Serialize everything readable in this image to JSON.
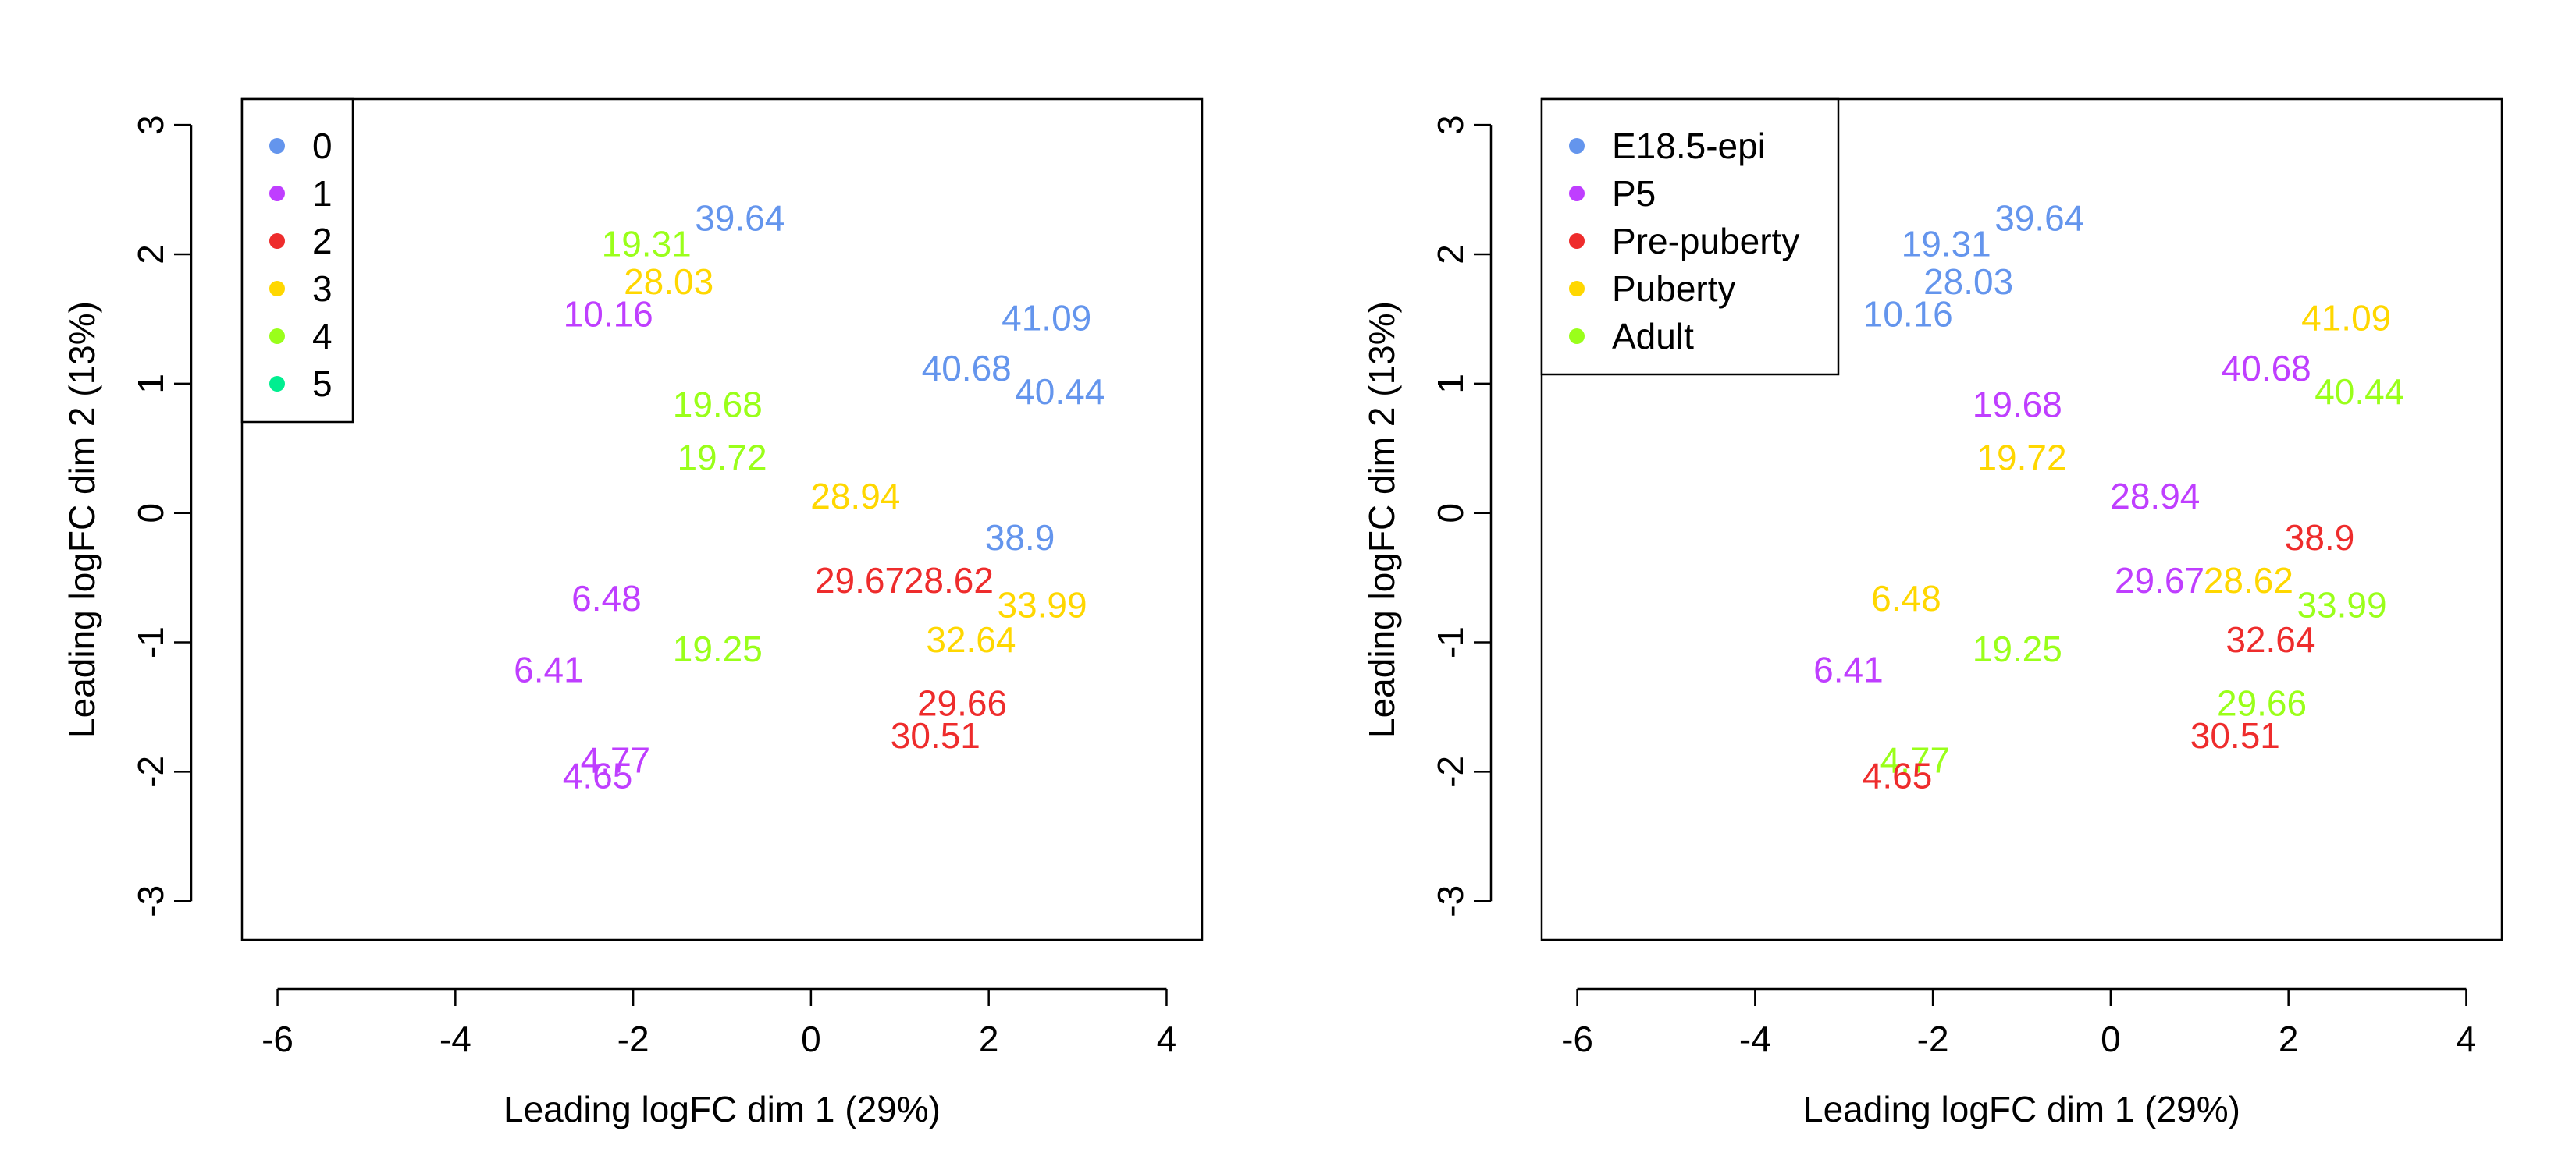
{
  "chart_data": [
    {
      "type": "scatter",
      "xlabel": "Leading logFC dim 1 (29%)",
      "ylabel": "Leading logFC dim 2 (13%)",
      "xlim": [
        -6.4,
        4.4
      ],
      "ylim": [
        -3.3,
        3.2
      ],
      "xticks": [
        -6,
        -4,
        -2,
        0,
        2,
        4
      ],
      "yticks": [
        -3,
        -2,
        -1,
        0,
        1,
        2,
        3
      ],
      "legend_position": "top-left",
      "legend": [
        {
          "label": "0",
          "color": "#6495ED"
        },
        {
          "label": "1",
          "color": "#BF3EFF"
        },
        {
          "label": "2",
          "color": "#EE2C2C"
        },
        {
          "label": "3",
          "color": "#FFD700"
        },
        {
          "label": "4",
          "color": "#9AFF1A"
        },
        {
          "label": "5",
          "color": "#00EE90"
        }
      ],
      "points": [
        {
          "label": "39.64",
          "x": -0.8,
          "y": 2.28,
          "group": 0
        },
        {
          "label": "19.31",
          "x": -1.85,
          "y": 2.08,
          "group": 4
        },
        {
          "label": "28.03",
          "x": -1.6,
          "y": 1.79,
          "group": 3
        },
        {
          "label": "10.16",
          "x": -2.28,
          "y": 1.54,
          "group": 1
        },
        {
          "label": "41.09",
          "x": 2.65,
          "y": 1.51,
          "group": 0
        },
        {
          "label": "40.68",
          "x": 1.75,
          "y": 1.12,
          "group": 0
        },
        {
          "label": "40.44",
          "x": 2.8,
          "y": 0.94,
          "group": 0
        },
        {
          "label": "19.68",
          "x": -1.05,
          "y": 0.84,
          "group": 4
        },
        {
          "label": "19.72",
          "x": -1.0,
          "y": 0.43,
          "group": 4
        },
        {
          "label": "28.94",
          "x": 0.5,
          "y": 0.13,
          "group": 3
        },
        {
          "label": "38.9",
          "x": 2.35,
          "y": -0.19,
          "group": 0
        },
        {
          "label": "29.67",
          "x": 0.55,
          "y": -0.52,
          "group": 2
        },
        {
          "label": "28.62",
          "x": 1.55,
          "y": -0.52,
          "group": 2
        },
        {
          "label": "6.48",
          "x": -2.3,
          "y": -0.66,
          "group": 1
        },
        {
          "label": "33.99",
          "x": 2.6,
          "y": -0.71,
          "group": 3
        },
        {
          "label": "32.64",
          "x": 1.8,
          "y": -0.98,
          "group": 3
        },
        {
          "label": "19.25",
          "x": -1.05,
          "y": -1.05,
          "group": 4
        },
        {
          "label": "6.41",
          "x": -2.95,
          "y": -1.21,
          "group": 1
        },
        {
          "label": "29.66",
          "x": 1.7,
          "y": -1.47,
          "group": 2
        },
        {
          "label": "30.51",
          "x": 1.4,
          "y": -1.72,
          "group": 2
        },
        {
          "label": "4.77",
          "x": -2.2,
          "y": -1.91,
          "group": 1
        },
        {
          "label": "4.65",
          "x": -2.4,
          "y": -2.03,
          "group": 1
        }
      ]
    },
    {
      "type": "scatter",
      "xlabel": "Leading logFC dim 1 (29%)",
      "ylabel": "Leading logFC dim 2 (13%)",
      "xlim": [
        -6.4,
        4.4
      ],
      "ylim": [
        -3.3,
        3.2
      ],
      "xticks": [
        -6,
        -4,
        -2,
        0,
        2,
        4
      ],
      "yticks": [
        -3,
        -2,
        -1,
        0,
        1,
        2,
        3
      ],
      "legend_position": "top-left",
      "legend": [
        {
          "label": "E18.5-epi",
          "color": "#6495ED"
        },
        {
          "label": "P5",
          "color": "#BF3EFF"
        },
        {
          "label": "Pre-puberty",
          "color": "#EE2C2C"
        },
        {
          "label": "Puberty",
          "color": "#FFD700"
        },
        {
          "label": "Adult",
          "color": "#9AFF1A"
        }
      ],
      "points": [
        {
          "label": "39.64",
          "x": -0.8,
          "y": 2.28,
          "group": 0
        },
        {
          "label": "19.31",
          "x": -1.85,
          "y": 2.08,
          "group": 0
        },
        {
          "label": "28.03",
          "x": -1.6,
          "y": 1.79,
          "group": 0
        },
        {
          "label": "10.16",
          "x": -2.28,
          "y": 1.54,
          "group": 0
        },
        {
          "label": "41.09",
          "x": 2.65,
          "y": 1.51,
          "group": 3
        },
        {
          "label": "40.68",
          "x": 1.75,
          "y": 1.12,
          "group": 1
        },
        {
          "label": "40.44",
          "x": 2.8,
          "y": 0.94,
          "group": 4
        },
        {
          "label": "19.68",
          "x": -1.05,
          "y": 0.84,
          "group": 1
        },
        {
          "label": "19.72",
          "x": -1.0,
          "y": 0.43,
          "group": 3
        },
        {
          "label": "28.94",
          "x": 0.5,
          "y": 0.13,
          "group": 1
        },
        {
          "label": "38.9",
          "x": 2.35,
          "y": -0.19,
          "group": 2
        },
        {
          "label": "29.67",
          "x": 0.55,
          "y": -0.52,
          "group": 1
        },
        {
          "label": "28.62",
          "x": 1.55,
          "y": -0.52,
          "group": 3
        },
        {
          "label": "6.48",
          "x": -2.3,
          "y": -0.66,
          "group": 3
        },
        {
          "label": "33.99",
          "x": 2.6,
          "y": -0.71,
          "group": 4
        },
        {
          "label": "32.64",
          "x": 1.8,
          "y": -0.98,
          "group": 2
        },
        {
          "label": "19.25",
          "x": -1.05,
          "y": -1.05,
          "group": 4
        },
        {
          "label": "6.41",
          "x": -2.95,
          "y": -1.21,
          "group": 1
        },
        {
          "label": "29.66",
          "x": 1.7,
          "y": -1.47,
          "group": 4
        },
        {
          "label": "30.51",
          "x": 1.4,
          "y": -1.72,
          "group": 2
        },
        {
          "label": "4.77",
          "x": -2.2,
          "y": -1.91,
          "group": 4
        },
        {
          "label": "4.65",
          "x": -2.4,
          "y": -2.03,
          "group": 2
        }
      ]
    }
  ]
}
